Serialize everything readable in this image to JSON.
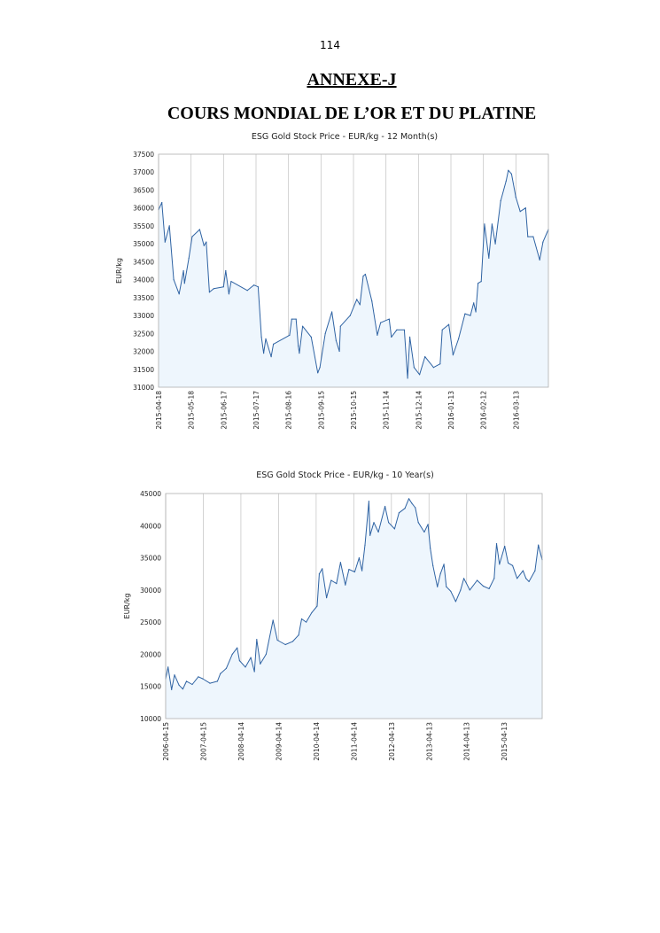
{
  "page": {
    "page_number": "114",
    "annex_heading": "ANNEXE-J",
    "title": "COURS MONDIAL DE L’OR ET DU PLATINE"
  },
  "colors": {
    "line": "#2f63a3",
    "fill": "#eef6fd",
    "grid": "#c8c8c8",
    "border": "#b0b0b0"
  },
  "chart_data": [
    {
      "type": "area",
      "title": "ESG Gold Stock Price - EUR/kg - 12 Month(s)",
      "xlabel": "",
      "ylabel": "EUR/kg",
      "xlim": [
        "2015-04-18",
        "2016-04-12"
      ],
      "ylim": [
        31000,
        37500
      ],
      "yticks": [
        31000,
        31500,
        32000,
        32500,
        33000,
        33500,
        34000,
        34500,
        35000,
        35500,
        36000,
        36500,
        37000,
        37500
      ],
      "xticks": [
        "2015-04-18",
        "2015-05-18",
        "2015-06-17",
        "2015-07-17",
        "2015-08-16",
        "2015-09-15",
        "2015-10-15",
        "2015-11-14",
        "2015-12-14",
        "2016-01-13",
        "2016-02-12",
        "2016-03-13"
      ],
      "grid": "vertical",
      "legend": "none",
      "x": [
        "2015-04-18",
        "2015-04-21",
        "2015-04-24",
        "2015-04-28",
        "2015-05-02",
        "2015-05-07",
        "2015-05-11",
        "2015-05-12",
        "2015-05-16",
        "2015-05-19",
        "2015-05-26",
        "2015-05-30",
        "2015-06-01",
        "2015-06-04",
        "2015-06-08",
        "2015-06-17",
        "2015-06-19",
        "2015-06-22",
        "2015-06-24",
        "2015-07-09",
        "2015-07-15",
        "2015-07-19",
        "2015-07-22",
        "2015-07-24",
        "2015-07-26",
        "2015-07-31",
        "2015-08-02",
        "2015-08-17",
        "2015-08-19",
        "2015-08-23",
        "2015-08-25",
        "2015-08-26",
        "2015-08-29",
        "2015-09-06",
        "2015-09-12",
        "2015-09-14",
        "2015-09-19",
        "2015-09-25",
        "2015-09-29",
        "2015-10-02",
        "2015-10-03",
        "2015-10-12",
        "2015-10-18",
        "2015-10-21",
        "2015-10-24",
        "2015-10-26",
        "2015-11-01",
        "2015-11-06",
        "2015-11-09",
        "2015-11-17",
        "2015-11-19",
        "2015-11-24",
        "2015-12-01",
        "2015-12-04",
        "2015-12-06",
        "2015-12-10",
        "2015-12-15",
        "2015-12-20",
        "2015-12-28",
        "2016-01-03",
        "2016-01-05",
        "2016-01-11",
        "2016-01-15",
        "2016-01-20",
        "2016-01-26",
        "2016-01-31",
        "2016-02-03",
        "2016-02-05",
        "2016-02-07",
        "2016-02-10",
        "2016-02-13",
        "2016-02-17",
        "2016-02-20",
        "2016-02-23",
        "2016-02-28",
        "2016-03-04",
        "2016-03-06",
        "2016-03-09",
        "2016-03-13",
        "2016-03-17",
        "2016-03-22",
        "2016-03-24",
        "2016-03-29",
        "2016-04-04",
        "2016-04-07",
        "2016-04-12"
      ],
      "y": [
        35950,
        36150,
        35050,
        35500,
        34000,
        33600,
        34250,
        33900,
        34600,
        35200,
        35400,
        34950,
        35050,
        33650,
        33750,
        33800,
        34250,
        33600,
        33950,
        33700,
        33850,
        33800,
        32400,
        31950,
        32350,
        31850,
        32200,
        32450,
        32900,
        32900,
        32150,
        31950,
        32700,
        32400,
        31400,
        31550,
        32500,
        33100,
        32300,
        32000,
        32700,
        33000,
        33450,
        33300,
        34100,
        34150,
        33400,
        32450,
        32800,
        32900,
        32400,
        32600,
        32600,
        31250,
        32400,
        31550,
        31350,
        31850,
        31550,
        31650,
        32600,
        32750,
        31900,
        32350,
        33050,
        33000,
        33350,
        33100,
        33900,
        33950,
        35550,
        34600,
        35550,
        35000,
        36200,
        36750,
        37050,
        36950,
        36300,
        35900,
        36000,
        35200,
        35200,
        34550,
        35050,
        35400
      ]
    },
    {
      "type": "area",
      "title": "ESG Gold Stock Price - EUR/kg - 10 Year(s)",
      "xlabel": "",
      "ylabel": "EUR/kg",
      "xlim": [
        "2006-04-15",
        "2016-04-15"
      ],
      "ylim": [
        10000,
        45000
      ],
      "yticks": [
        10000,
        15000,
        20000,
        25000,
        30000,
        35000,
        40000,
        45000
      ],
      "xticks": [
        "2006-04-15",
        "2007-04-15",
        "2008-04-14",
        "2009-04-14",
        "2010-04-14",
        "2011-04-14",
        "2012-04-13",
        "2013-04-13",
        "2014-04-13",
        "2015-04-13"
      ],
      "grid": "vertical",
      "legend": "none",
      "x": [
        "2006-04-15",
        "2006-05-08",
        "2006-06-12",
        "2006-07-10",
        "2006-08-23",
        "2006-09-29",
        "2006-11-03",
        "2006-12-29",
        "2007-02-26",
        "2007-04-08",
        "2007-06-19",
        "2007-08-30",
        "2007-09-28",
        "2007-11-24",
        "2008-01-21",
        "2008-03-09",
        "2008-04-01",
        "2008-05-28",
        "2008-07-19",
        "2008-08-23",
        "2008-09-15",
        "2008-10-19",
        "2008-12-15",
        "2009-02-20",
        "2009-04-03",
        "2009-06-19",
        "2009-08-30",
        "2009-10-26",
        "2009-11-24",
        "2010-01-07",
        "2010-03-03",
        "2010-04-24",
        "2010-05-14",
        "2010-06-12",
        "2010-07-24",
        "2010-09-07",
        "2010-10-28",
        "2010-12-07",
        "2011-01-22",
        "2011-02-26",
        "2011-04-23",
        "2011-06-05",
        "2011-07-03",
        "2011-08-01",
        "2011-09-08",
        "2011-09-19",
        "2011-10-26",
        "2011-12-09",
        "2012-02-11",
        "2012-03-17",
        "2012-05-14",
        "2012-06-26",
        "2012-08-23",
        "2012-09-29",
        "2012-10-28",
        "2012-12-01",
        "2012-12-30",
        "2013-02-26",
        "2013-04-03",
        "2013-04-25",
        "2013-05-21",
        "2013-07-03",
        "2013-08-01",
        "2013-09-05",
        "2013-09-28",
        "2013-11-10",
        "2013-12-28",
        "2014-02-13",
        "2014-03-17",
        "2014-05-14",
        "2014-07-24",
        "2014-09-21",
        "2014-11-17",
        "2015-01-05",
        "2015-01-28",
        "2015-02-26",
        "2015-04-17",
        "2015-05-21",
        "2015-07-03",
        "2015-08-16",
        "2015-10-12",
        "2015-11-10",
        "2015-12-09",
        "2016-02-05",
        "2016-03-09",
        "2016-04-15"
      ],
      "y": [
        16200,
        18000,
        14500,
        16800,
        15200,
        14600,
        15800,
        15300,
        16500,
        16200,
        15500,
        15800,
        17000,
        17800,
        20000,
        21000,
        19000,
        18000,
        19500,
        17300,
        22300,
        18500,
        20000,
        25300,
        22200,
        21500,
        22000,
        23000,
        25500,
        25000,
        26500,
        27500,
        32500,
        33300,
        28800,
        31500,
        31000,
        34300,
        30800,
        33200,
        32800,
        35000,
        33000,
        37000,
        43800,
        38500,
        40500,
        39000,
        43000,
        40500,
        39500,
        42000,
        42700,
        44200,
        43500,
        42800,
        40500,
        39000,
        40200,
        36500,
        33800,
        30500,
        32500,
        34000,
        30500,
        29800,
        28200,
        30000,
        31800,
        30000,
        31500,
        30600,
        30200,
        31800,
        37200,
        34000,
        36800,
        34200,
        33800,
        31800,
        33000,
        31800,
        31300,
        33000,
        37000,
        34700
      ]
    }
  ]
}
